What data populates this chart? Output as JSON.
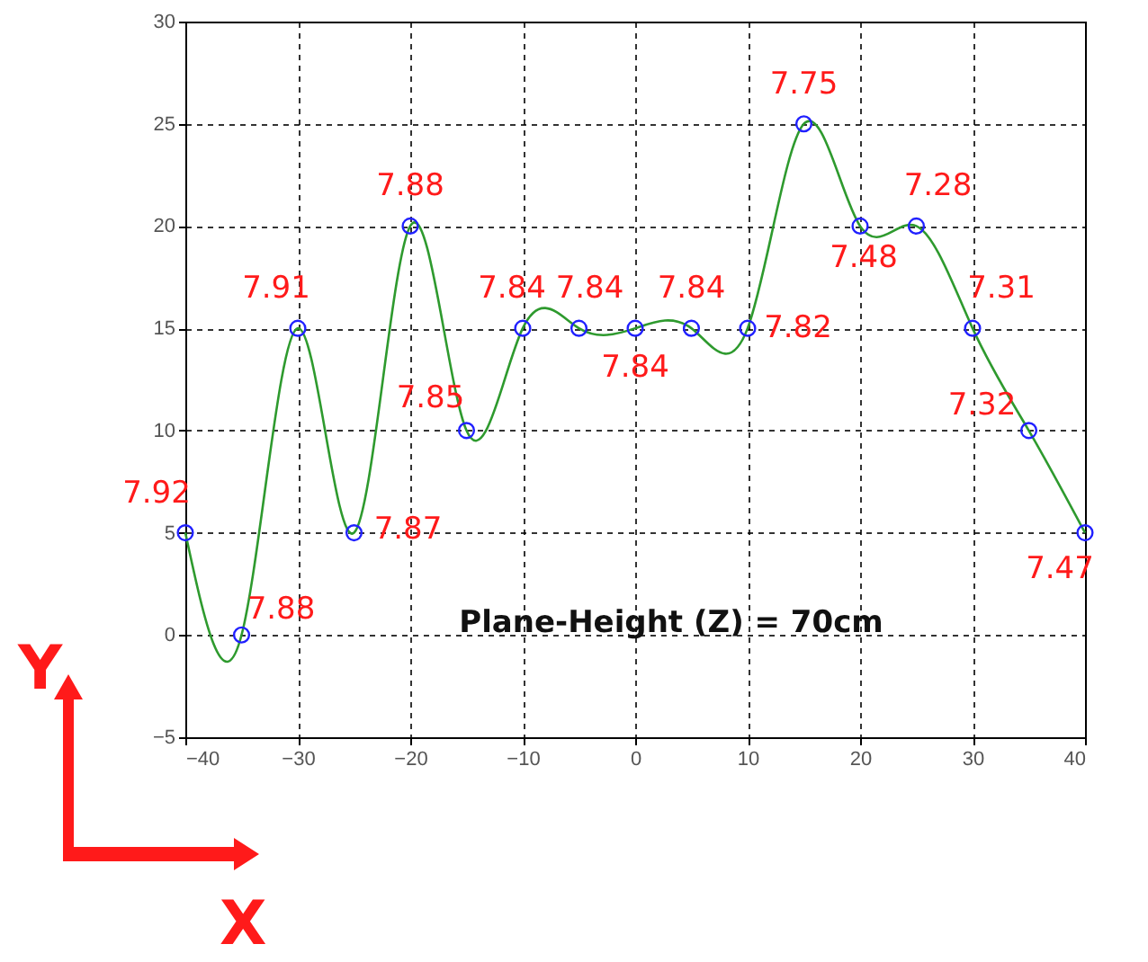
{
  "chart_data": {
    "type": "line",
    "xlabel": "X",
    "ylabel": "Y",
    "x": [
      -40,
      -35,
      -30,
      -25,
      -20,
      -15,
      -10,
      -5,
      0,
      5,
      10,
      15,
      20,
      25,
      30,
      35,
      40
    ],
    "series": [
      {
        "color": "#2e9a2e",
        "values": [
          5,
          0,
          15,
          5,
          20,
          10,
          15,
          15,
          15,
          15,
          15,
          25,
          20,
          20,
          15,
          10,
          5
        ]
      },
      {
        "type": "scatter",
        "color": "#2020ff",
        "marker": "circle",
        "values": [
          5,
          0,
          15,
          5,
          20,
          10,
          15,
          15,
          15,
          15,
          15,
          25,
          20,
          20,
          15,
          10,
          5
        ]
      }
    ],
    "xlim": [
      -40,
      40
    ],
    "xticks": [
      -40,
      -30,
      -20,
      -10,
      0,
      10,
      20,
      30,
      40
    ],
    "ylim": [
      -5,
      30
    ],
    "yticks": [
      -5,
      0,
      5,
      10,
      15,
      20,
      25,
      30
    ],
    "grid": true,
    "annotations": [
      {
        "text": "7.92",
        "x": -40,
        "y": 5
      },
      {
        "text": "7.88",
        "x": -35,
        "y": 0
      },
      {
        "text": "7.91",
        "x": -30,
        "y": 15
      },
      {
        "text": "7.87",
        "x": -25,
        "y": 5
      },
      {
        "text": "7.88",
        "x": -20,
        "y": 20
      },
      {
        "text": "7.85",
        "x": -15,
        "y": 10
      },
      {
        "text": "7.84",
        "x": -10,
        "y": 15
      },
      {
        "text": "7.84",
        "x": -5,
        "y": 15
      },
      {
        "text": "7.84",
        "x": 0,
        "y": 15
      },
      {
        "text": "7.84",
        "x": 5,
        "y": 15
      },
      {
        "text": "7.82",
        "x": 10,
        "y": 15
      },
      {
        "text": "7.75",
        "x": 15,
        "y": 25
      },
      {
        "text": "7.48",
        "x": 20,
        "y": 20
      },
      {
        "text": "7.28",
        "x": 25,
        "y": 20
      },
      {
        "text": "7.31",
        "x": 30,
        "y": 15
      },
      {
        "text": "7.32",
        "x": 35,
        "y": 10
      },
      {
        "text": "7.47",
        "x": 40,
        "y": 5
      },
      "Plane-Height (Z) = 70cm"
    ]
  }
}
